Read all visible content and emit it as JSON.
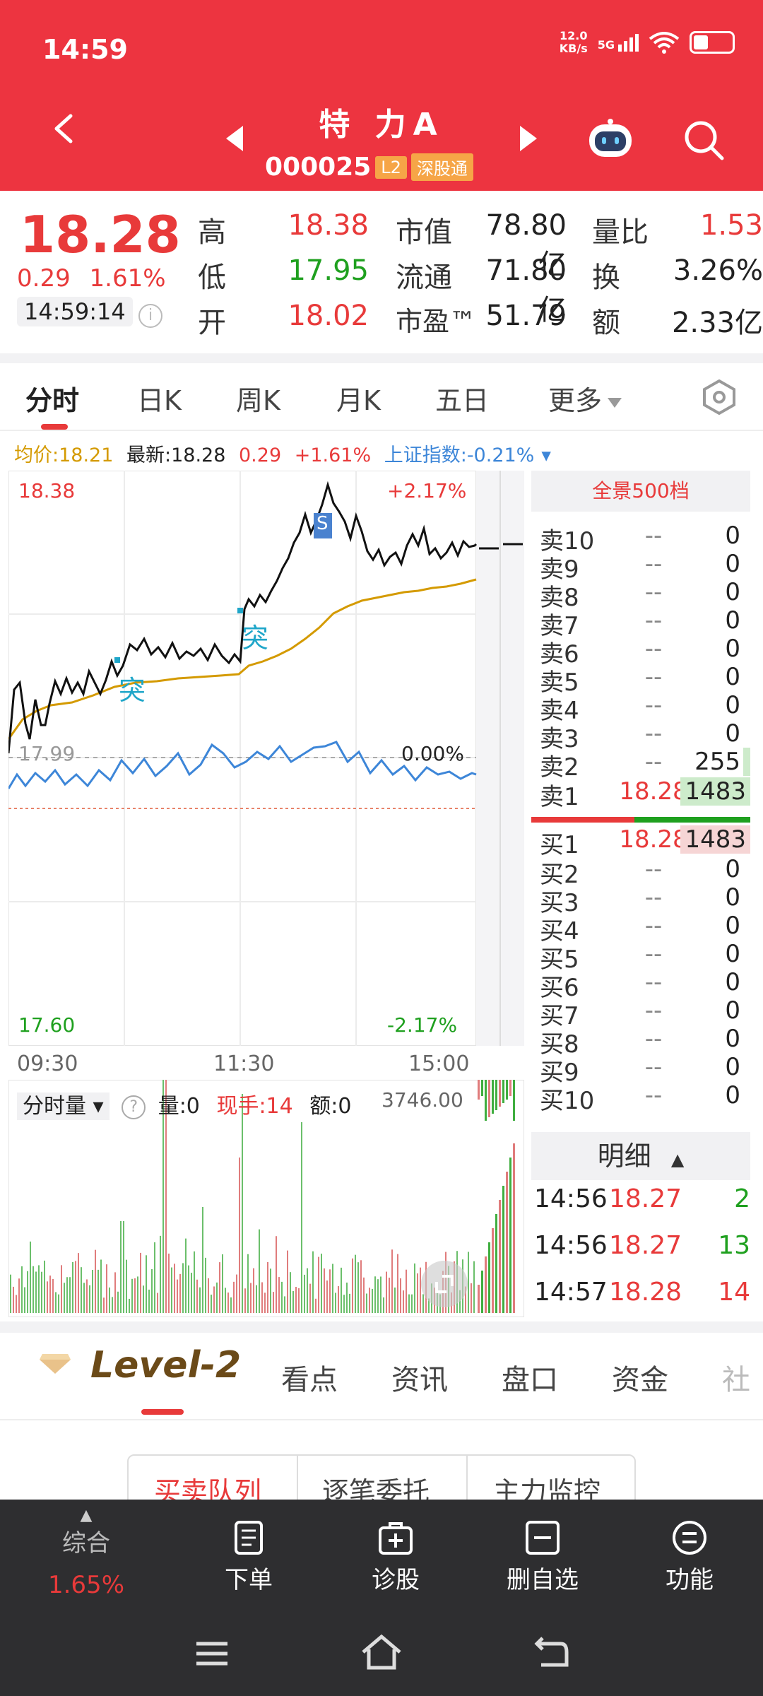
{
  "status_bar": {
    "time": "14:59",
    "net_speed_value": "12.0",
    "net_speed_unit": "KB/s",
    "network": "5G"
  },
  "header": {
    "title": "特 力A",
    "code": "000025",
    "tag_l2": "L2",
    "tag_connect": "深股通",
    "accent": "#ED3440"
  },
  "quote": {
    "price": "18.28",
    "change": "0.29",
    "change_pct": "1.61%",
    "time": "14:59:14",
    "high_label": "高",
    "high": "18.38",
    "low_label": "低",
    "low": "17.95",
    "open_label": "开",
    "open": "18.02",
    "mcap_label": "市值",
    "mcap": "78.80亿",
    "float_label": "流通",
    "float": "71.80亿",
    "pe_label": "市盈™",
    "pe": "51.79",
    "vol_ratio_label": "量比",
    "vol_ratio": "1.53",
    "turnover_label": "换",
    "turnover": "3.26%",
    "amount_label": "额",
    "amount": "2.33亿"
  },
  "chart_tabs": [
    "分时",
    "日K",
    "周K",
    "月K",
    "五日",
    "更多"
  ],
  "legend": {
    "avg": "均价:18.21",
    "latest": "最新:18.28",
    "chg": "0.29",
    "pct": "+1.61%",
    "index": "上证指数:-0.21%"
  },
  "chart_labels": {
    "top_price": "18.38",
    "top_pct": "+2.17%",
    "mid_price": "17.99",
    "mid_pct": "0.00%",
    "bottom_price": "17.60",
    "bottom_pct": "-2.17%",
    "t_open": "09:30",
    "t_mid": "11:30",
    "t_close": "15:00",
    "signal1": "突",
    "signal2": "突",
    "signal_s": "S"
  },
  "order_book": {
    "head": "全景500档",
    "asks": [
      {
        "label": "卖10",
        "price": "-- ",
        "vol": "0"
      },
      {
        "label": "卖9",
        "price": "--",
        "vol": "0"
      },
      {
        "label": "卖8",
        "price": "--",
        "vol": "0"
      },
      {
        "label": "卖7",
        "price": "--",
        "vol": "0"
      },
      {
        "label": "卖6",
        "price": "--",
        "vol": "0"
      },
      {
        "label": "卖5",
        "price": "--",
        "vol": "0"
      },
      {
        "label": "卖4",
        "price": "--",
        "vol": "0"
      },
      {
        "label": "卖3",
        "price": "--",
        "vol": "0"
      },
      {
        "label": "卖2",
        "price": "--",
        "vol": "255"
      },
      {
        "label": "卖1",
        "price": "18.28",
        "vol": "1483"
      }
    ],
    "bids": [
      {
        "label": "买1",
        "price": "18.28",
        "vol": "1483"
      },
      {
        "label": "买2",
        "price": "--",
        "vol": "0"
      },
      {
        "label": "买3",
        "price": "--",
        "vol": "0"
      },
      {
        "label": "买4",
        "price": "--",
        "vol": "0"
      },
      {
        "label": "买5",
        "price": "--",
        "vol": "0"
      },
      {
        "label": "买6",
        "price": "--",
        "vol": "0"
      },
      {
        "label": "买7",
        "price": "--",
        "vol": "0"
      },
      {
        "label": "买8",
        "price": "--",
        "vol": "0"
      },
      {
        "label": "买9",
        "price": "--",
        "vol": "0"
      },
      {
        "label": "买10",
        "price": "--",
        "vol": "0"
      }
    ]
  },
  "volume_panel": {
    "selector": "分时量",
    "vol": "量:0",
    "now_hand": "现手:14",
    "amount": "额:0",
    "max": "3746.00"
  },
  "details": {
    "head": "明细",
    "rows": [
      {
        "time": "14:56",
        "price": "18.27",
        "vol": "2"
      },
      {
        "time": "14:56",
        "price": "18.27",
        "vol": "13"
      },
      {
        "time": "14:57",
        "price": "18.28",
        "vol": "14"
      }
    ]
  },
  "level2": {
    "title": "Level-2",
    "tabs": [
      "看点",
      "资讯",
      "盘口",
      "资金",
      "社"
    ]
  },
  "subtabs": [
    "买卖队列",
    "逐笔委托",
    "主力监控"
  ],
  "bottom_nav": {
    "composite_label": "综合",
    "composite_value": "1.65%",
    "order": "下单",
    "diagnose": "诊股",
    "remove_fav": "删自选",
    "functions": "功能"
  }
}
